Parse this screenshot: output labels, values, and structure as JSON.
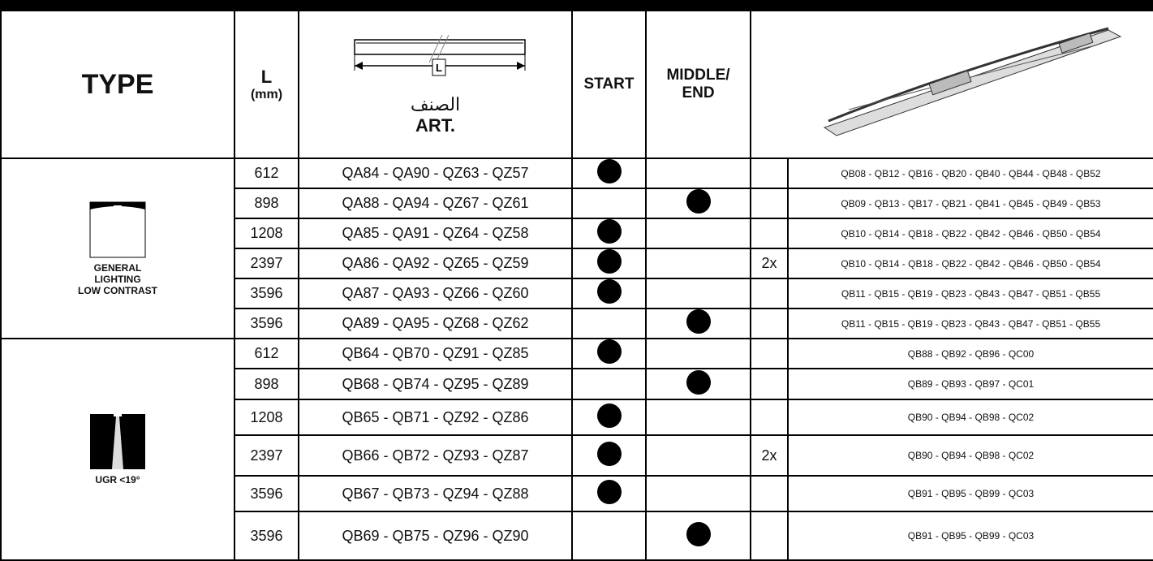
{
  "header": {
    "type": "TYPE",
    "l": "L",
    "l_unit": "(mm)",
    "art_diagram_label": "L",
    "art_arabic": "الصنف",
    "art": "ART.",
    "start": "START",
    "middle_end": [
      "MIDDLE/",
      "END"
    ]
  },
  "groups": [
    {
      "label": [
        "GENERAL",
        "LIGHTING",
        "LOW CONTRAST"
      ],
      "rows": [
        {
          "l": 612,
          "art": "QA84 - QA90 - QZ63 - QZ57",
          "refs": "QB08 - QB12 - QB16 - QB20 - QB40 - QB44 - QB48 - QB52"
        },
        {
          "l": 898,
          "art": "QA88 - QA94 - QZ67 - QZ61",
          "refs": "QB09 - QB13 - QB17 - QB21 - QB41 - QB45 - QB49 - QB53"
        },
        {
          "l": 1208,
          "art": "QA85 - QA91 - QZ64 - QZ58",
          "refs": "QB10 - QB14 - QB18 - QB22 - QB42 - QB46 - QB50 - QB54"
        },
        {
          "l": 2397,
          "art": "QA86 - QA92 - QZ65 - QZ59",
          "qty": "2x",
          "refs": "QB10 - QB14 - QB18 - QB22 - QB42 - QB46 - QB50 - QB54"
        },
        {
          "l": 3596,
          "art": "QA87 - QA93 - QZ66 - QZ60",
          "refs": "QB11 - QB15 - QB19 - QB23 - QB43 - QB47 - QB51 - QB55"
        },
        {
          "l": 3596,
          "art": "QA89 - QA95 - QZ68 - QZ62",
          "refs": "QB11 - QB15 - QB19 - QB23 - QB43 - QB47 - QB51 - QB55"
        }
      ]
    },
    {
      "label": [
        "UGR <19°"
      ],
      "rows": [
        {
          "l": 612,
          "art": "QB64 - QB70 - QZ91 - QZ85",
          "refs": "QB88 - QB92 - QB96 - QC00"
        },
        {
          "l": 898,
          "art": "QB68 - QB74 - QZ95 - QZ89",
          "refs": "QB89 - QB93 - QB97 - QC01"
        },
        {
          "l": 1208,
          "art": "QB65 - QB71 - QZ92 - QZ86",
          "refs": "QB90 - QB94 - QB98 - QC02"
        },
        {
          "l": 2397,
          "art": "QB66 - QB72 - QZ93 - QZ87",
          "qty": "2x",
          "refs": "QB90 - QB94 - QB98 - QC02"
        },
        {
          "l": 3596,
          "art": "QB67 - QB73 - QZ94 - QZ88",
          "refs": "QB91 - QB95 - QB99 - QC03"
        },
        {
          "l": 3596,
          "art": "QB69 - QB75 - QZ96 - QZ90",
          "refs": "QB91 - QB95 - QB99 - QC03"
        }
      ]
    }
  ]
}
